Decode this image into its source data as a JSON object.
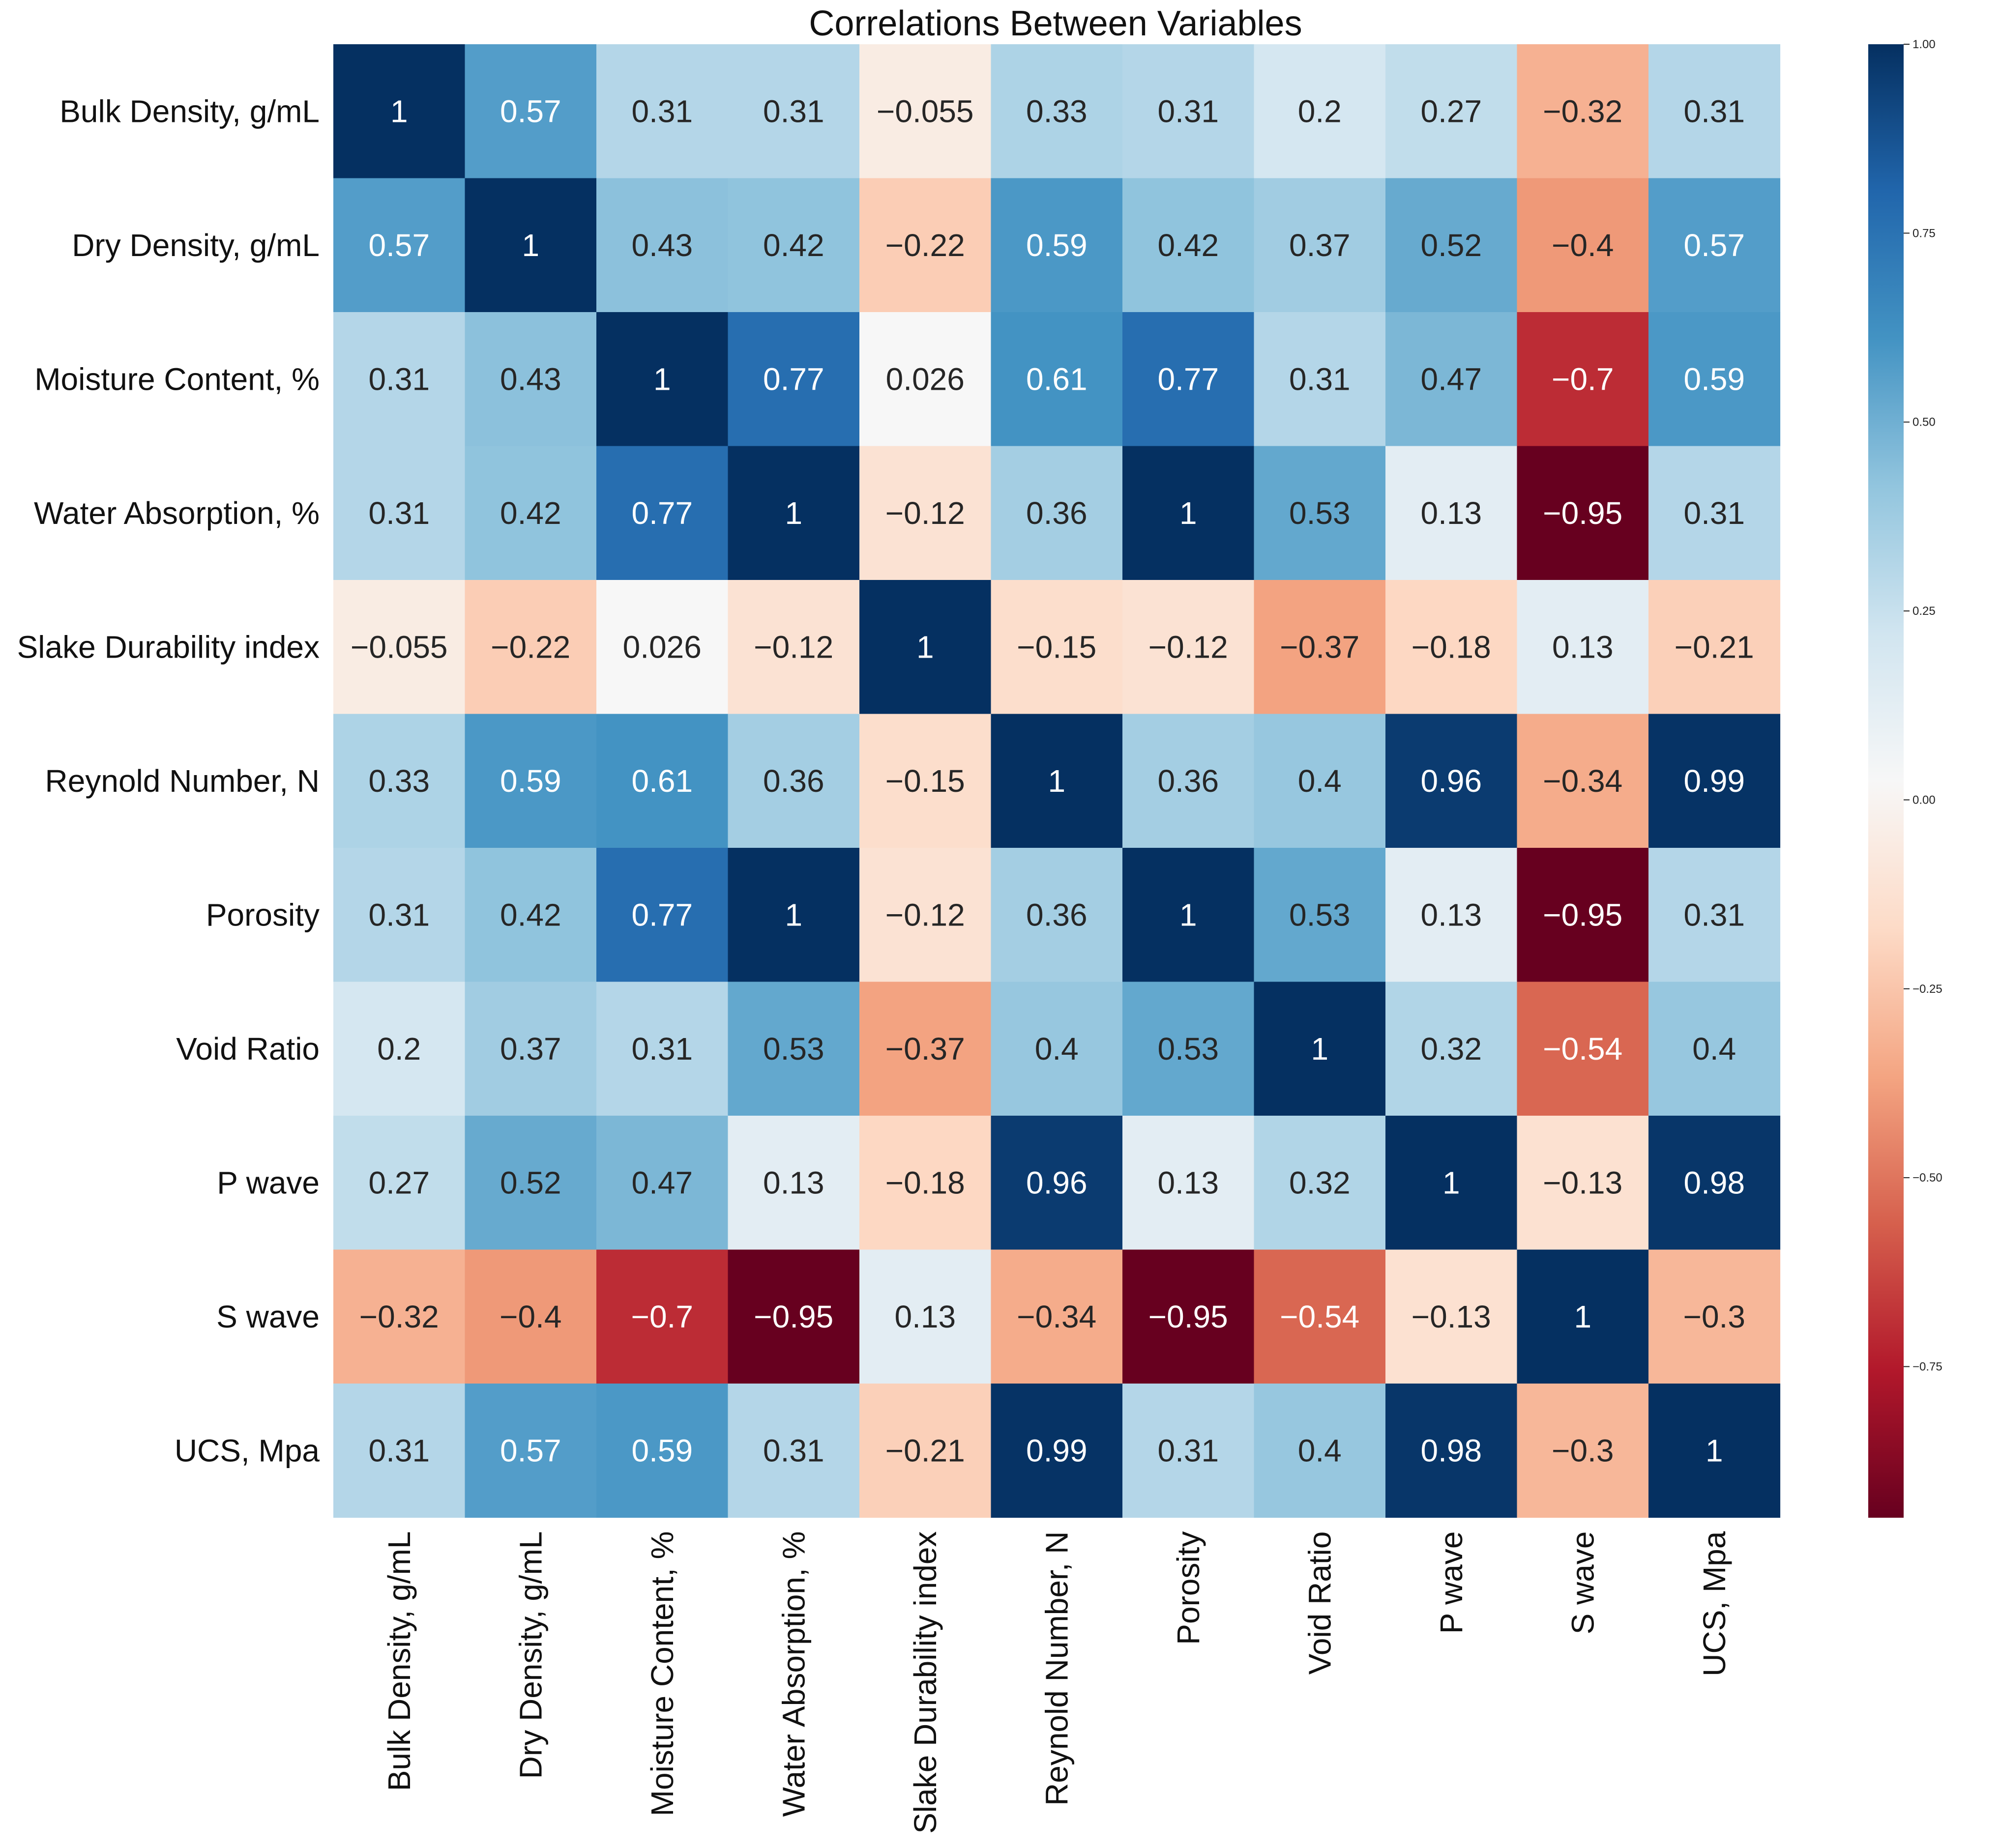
{
  "chart_data": {
    "type": "heatmap",
    "title": "Correlations Between Variables",
    "labels": [
      "Bulk Density, g/mL",
      "Dry Density, g/mL",
      "Moisture Content, %",
      "Water Absorption, %",
      "Slake Durability index",
      "Reynold Number, N",
      "Porosity",
      "Void Ratio",
      "P wave",
      "S wave",
      "UCS, Mpa"
    ],
    "matrix": [
      [
        1,
        0.57,
        0.31,
        0.31,
        -0.055,
        0.33,
        0.31,
        0.2,
        0.27,
        -0.32,
        0.31
      ],
      [
        0.57,
        1,
        0.43,
        0.42,
        -0.22,
        0.59,
        0.42,
        0.37,
        0.52,
        -0.4,
        0.57
      ],
      [
        0.31,
        0.43,
        1,
        0.77,
        0.026,
        0.61,
        0.77,
        0.31,
        0.47,
        -0.7,
        0.59
      ],
      [
        0.31,
        0.42,
        0.77,
        1,
        -0.12,
        0.36,
        1,
        0.53,
        0.13,
        -0.95,
        0.31
      ],
      [
        -0.055,
        -0.22,
        0.026,
        -0.12,
        1,
        -0.15,
        -0.12,
        -0.37,
        -0.18,
        0.13,
        -0.21
      ],
      [
        0.33,
        0.59,
        0.61,
        0.36,
        -0.15,
        1,
        0.36,
        0.4,
        0.96,
        -0.34,
        0.99
      ],
      [
        0.31,
        0.42,
        0.77,
        1,
        -0.12,
        0.36,
        1,
        0.53,
        0.13,
        -0.95,
        0.31
      ],
      [
        0.2,
        0.37,
        0.31,
        0.53,
        -0.37,
        0.4,
        0.53,
        1,
        0.32,
        -0.54,
        0.4
      ],
      [
        0.27,
        0.52,
        0.47,
        0.13,
        -0.18,
        0.96,
        0.13,
        0.32,
        1,
        -0.13,
        0.98
      ],
      [
        -0.32,
        -0.4,
        -0.7,
        -0.95,
        0.13,
        -0.34,
        -0.95,
        -0.54,
        -0.13,
        1,
        -0.3
      ],
      [
        0.31,
        0.57,
        0.59,
        0.31,
        -0.21,
        0.99,
        0.31,
        0.4,
        0.98,
        -0.3,
        1
      ]
    ],
    "colormap": "RdBu",
    "colorbar": {
      "range": [
        -0.95,
        1.0
      ],
      "ticks": [
        1.0,
        0.75,
        0.5,
        0.25,
        0.0,
        -0.25,
        -0.5,
        -0.75
      ],
      "tick_labels": [
        "1.00",
        "0.75",
        "0.50",
        "0.25",
        "0.00",
        "−0.25",
        "−0.50",
        "−0.75"
      ]
    }
  }
}
